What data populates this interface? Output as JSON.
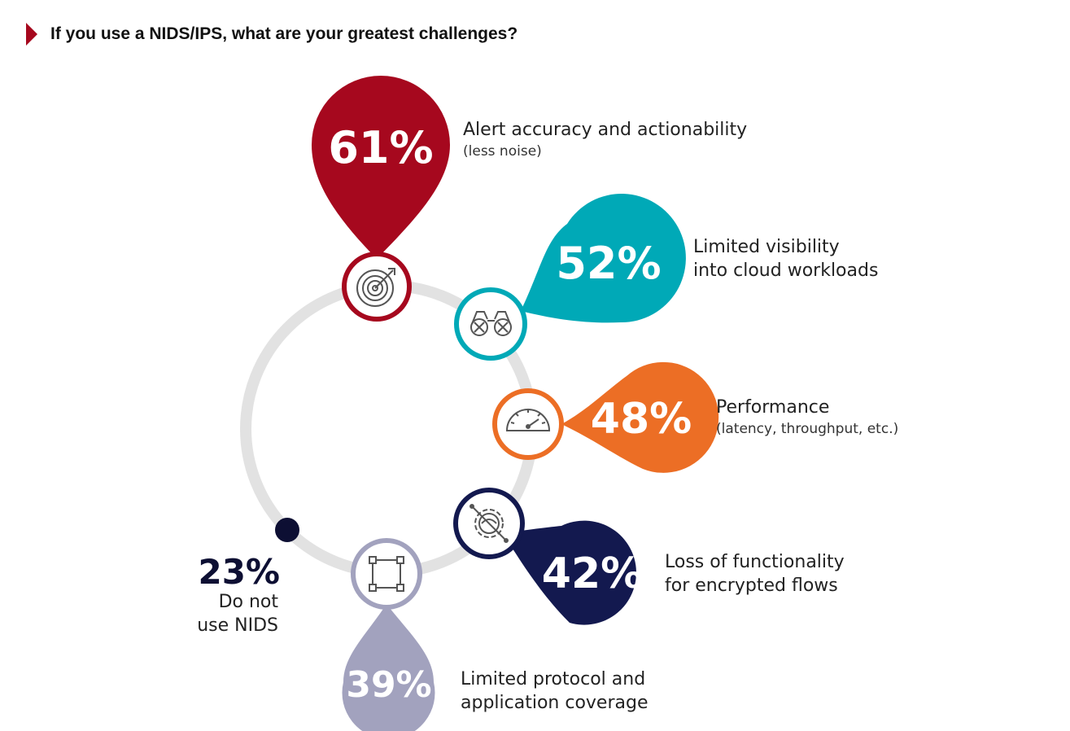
{
  "title": "If you use a NIDS/IPS, what are your greatest challenges?",
  "colors": {
    "accent": "#a6081e",
    "red": "#a6081e",
    "teal": "#00a9b7",
    "orange": "#ec6e25",
    "navy": "#13194f",
    "lavender": "#a2a2be",
    "ring": "#e2e2e2",
    "dark_dot": "#0d0f33"
  },
  "chart_data": {
    "type": "bar",
    "categories": [
      "Alert accuracy and actionability (less noise)",
      "Limited visibility into cloud workloads",
      "Performance (latency, throughput, etc.)",
      "Loss of functionality for encrypted flows",
      "Limited protocol and application coverage",
      "Do not use NIDS"
    ],
    "values": [
      61,
      52,
      48,
      42,
      39,
      23
    ],
    "unit": "%",
    "title": "If you use a NIDS/IPS, what are your greatest challenges?"
  },
  "items": [
    {
      "pct": "61%",
      "line1": "Alert accuracy and actionability",
      "line2": "(less noise)",
      "color": "#a6081e",
      "icon": "target-icon"
    },
    {
      "pct": "52%",
      "line1": "Limited visibility",
      "line2": "into cloud workloads",
      "color": "#00a9b7",
      "icon": "binoculars-icon"
    },
    {
      "pct": "48%",
      "line1": "Performance",
      "line2": "(latency, throughput, etc.)",
      "color": "#ec6e25",
      "icon": "speedometer-icon"
    },
    {
      "pct": "42%",
      "line1": "Loss of functionality",
      "line2": "for encrypted flows",
      "color": "#13194f",
      "icon": "gear-slash-icon"
    },
    {
      "pct": "39%",
      "line1": "Limited protocol and",
      "line2": "application coverage",
      "color": "#a2a2be",
      "icon": "frame-icon"
    }
  ],
  "non_user": {
    "pct": "23%",
    "line1": "Do not",
    "line2": "use NIDS"
  }
}
